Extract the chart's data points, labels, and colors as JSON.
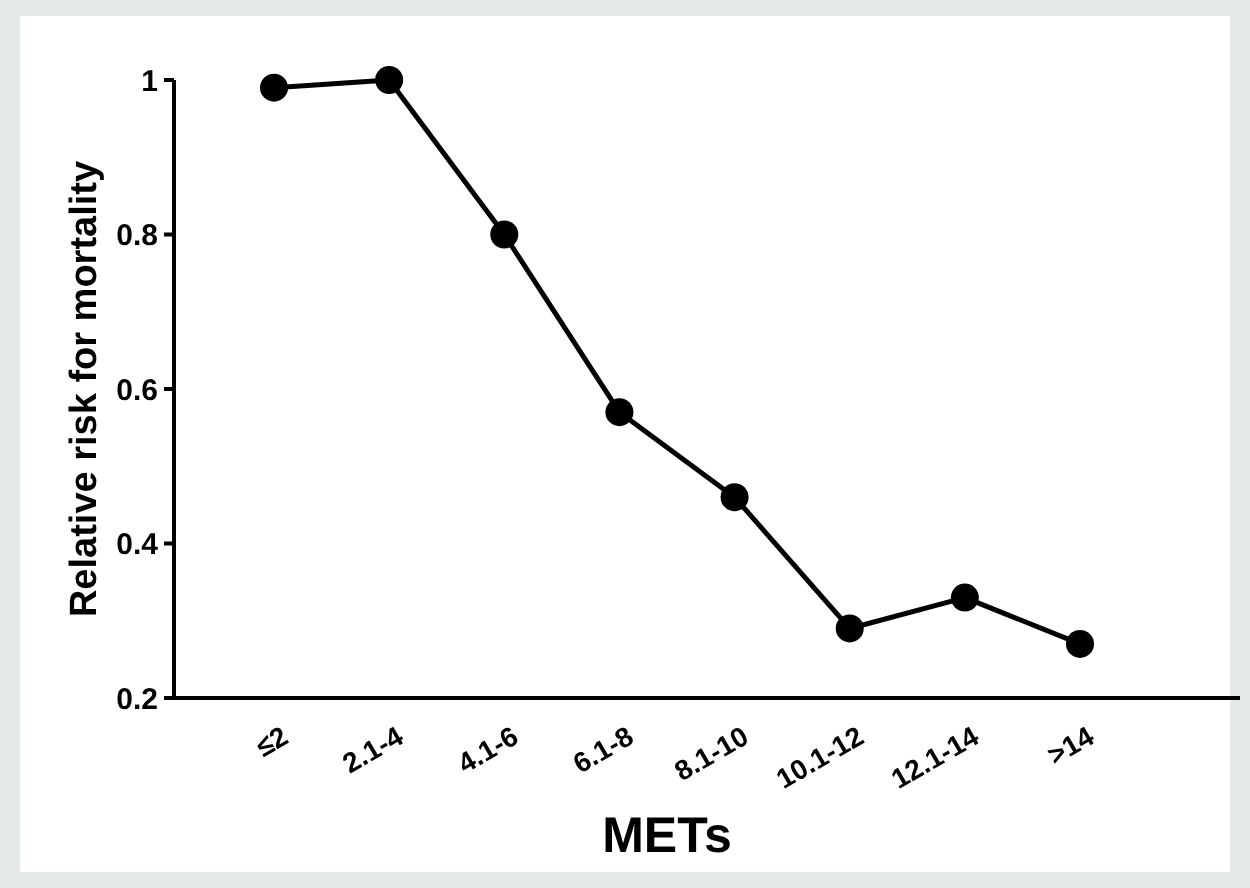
{
  "chart_data": {
    "type": "line",
    "xlabel": "METs",
    "ylabel": "Relative risk for mortality",
    "categories": [
      "≤2",
      "2.1-4",
      "4.1-6",
      "6.1-8",
      "8.1-10",
      "10.1-12",
      "12.1-14",
      ">14"
    ],
    "series": [
      {
        "color": "#000000",
        "values": [
          0.99,
          1.0,
          0.8,
          0.57,
          0.46,
          0.29,
          0.33,
          0.27
        ]
      }
    ],
    "ylim": [
      0.2,
      1.0
    ],
    "yticks": [
      1,
      0.8,
      0.6,
      0.4,
      0.2
    ],
    "marker": "circle",
    "line_style": "solid"
  }
}
